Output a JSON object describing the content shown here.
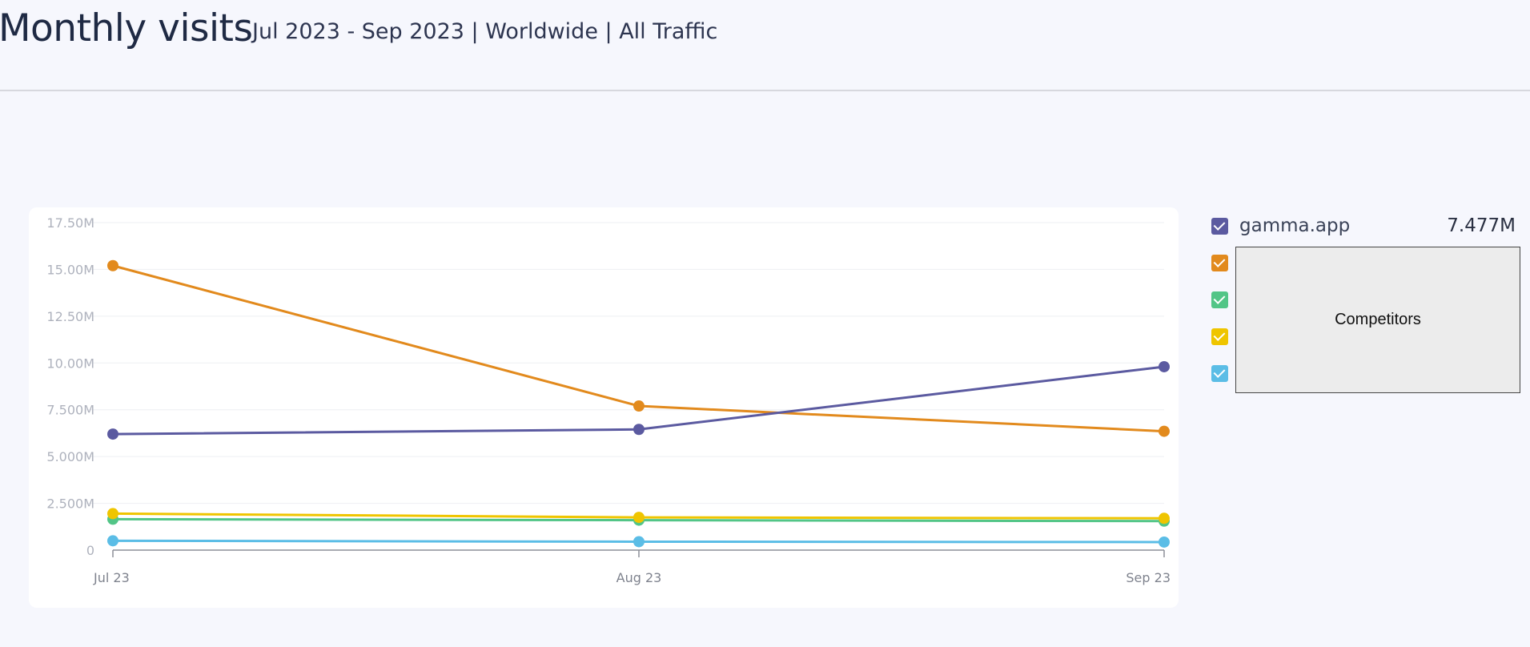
{
  "header": {
    "title": "Monthly visits",
    "subtitle": "Jul 2023 - Sep 2023 | Worldwide | All Traffic"
  },
  "overlay_label": "Competitors",
  "legend": [
    {
      "name": "gamma.app",
      "value": "7.477M",
      "color": "#5b5aa0"
    },
    {
      "name": "",
      "value": "",
      "color": "#e28a1d"
    },
    {
      "name": "",
      "value": "",
      "color": "#52c587"
    },
    {
      "name": "",
      "value": "",
      "color": "#efc500"
    },
    {
      "name": "",
      "value": "",
      "color": "#5bbde6"
    }
  ],
  "chart_data": {
    "type": "line",
    "title": "",
    "xlabel": "",
    "ylabel": "",
    "ylim": [
      0,
      17500000
    ],
    "yticks": [
      {
        "value": 0,
        "label": "0"
      },
      {
        "value": 2500000,
        "label": "2.500M"
      },
      {
        "value": 5000000,
        "label": "5.000M"
      },
      {
        "value": 7500000,
        "label": "7.500M"
      },
      {
        "value": 10000000,
        "label": "10.00M"
      },
      {
        "value": 12500000,
        "label": "12.50M"
      },
      {
        "value": 15000000,
        "label": "15.00M"
      },
      {
        "value": 17500000,
        "label": "17.50M"
      }
    ],
    "categories": [
      "Jul 23",
      "Aug 23",
      "Sep 23"
    ],
    "grid": true,
    "legend_position": "right",
    "series": [
      {
        "name": "gamma.app",
        "color": "#5b5aa0",
        "values": [
          6200000,
          6450000,
          9800000
        ]
      },
      {
        "color": "#e28a1d",
        "values": [
          15200000,
          7700000,
          6350000
        ]
      },
      {
        "color": "#52c587",
        "values": [
          1650000,
          1600000,
          1550000
        ]
      },
      {
        "color": "#efc500",
        "values": [
          1950000,
          1750000,
          1700000
        ]
      },
      {
        "color": "#5bbde6",
        "values": [
          500000,
          450000,
          430000
        ]
      }
    ]
  }
}
